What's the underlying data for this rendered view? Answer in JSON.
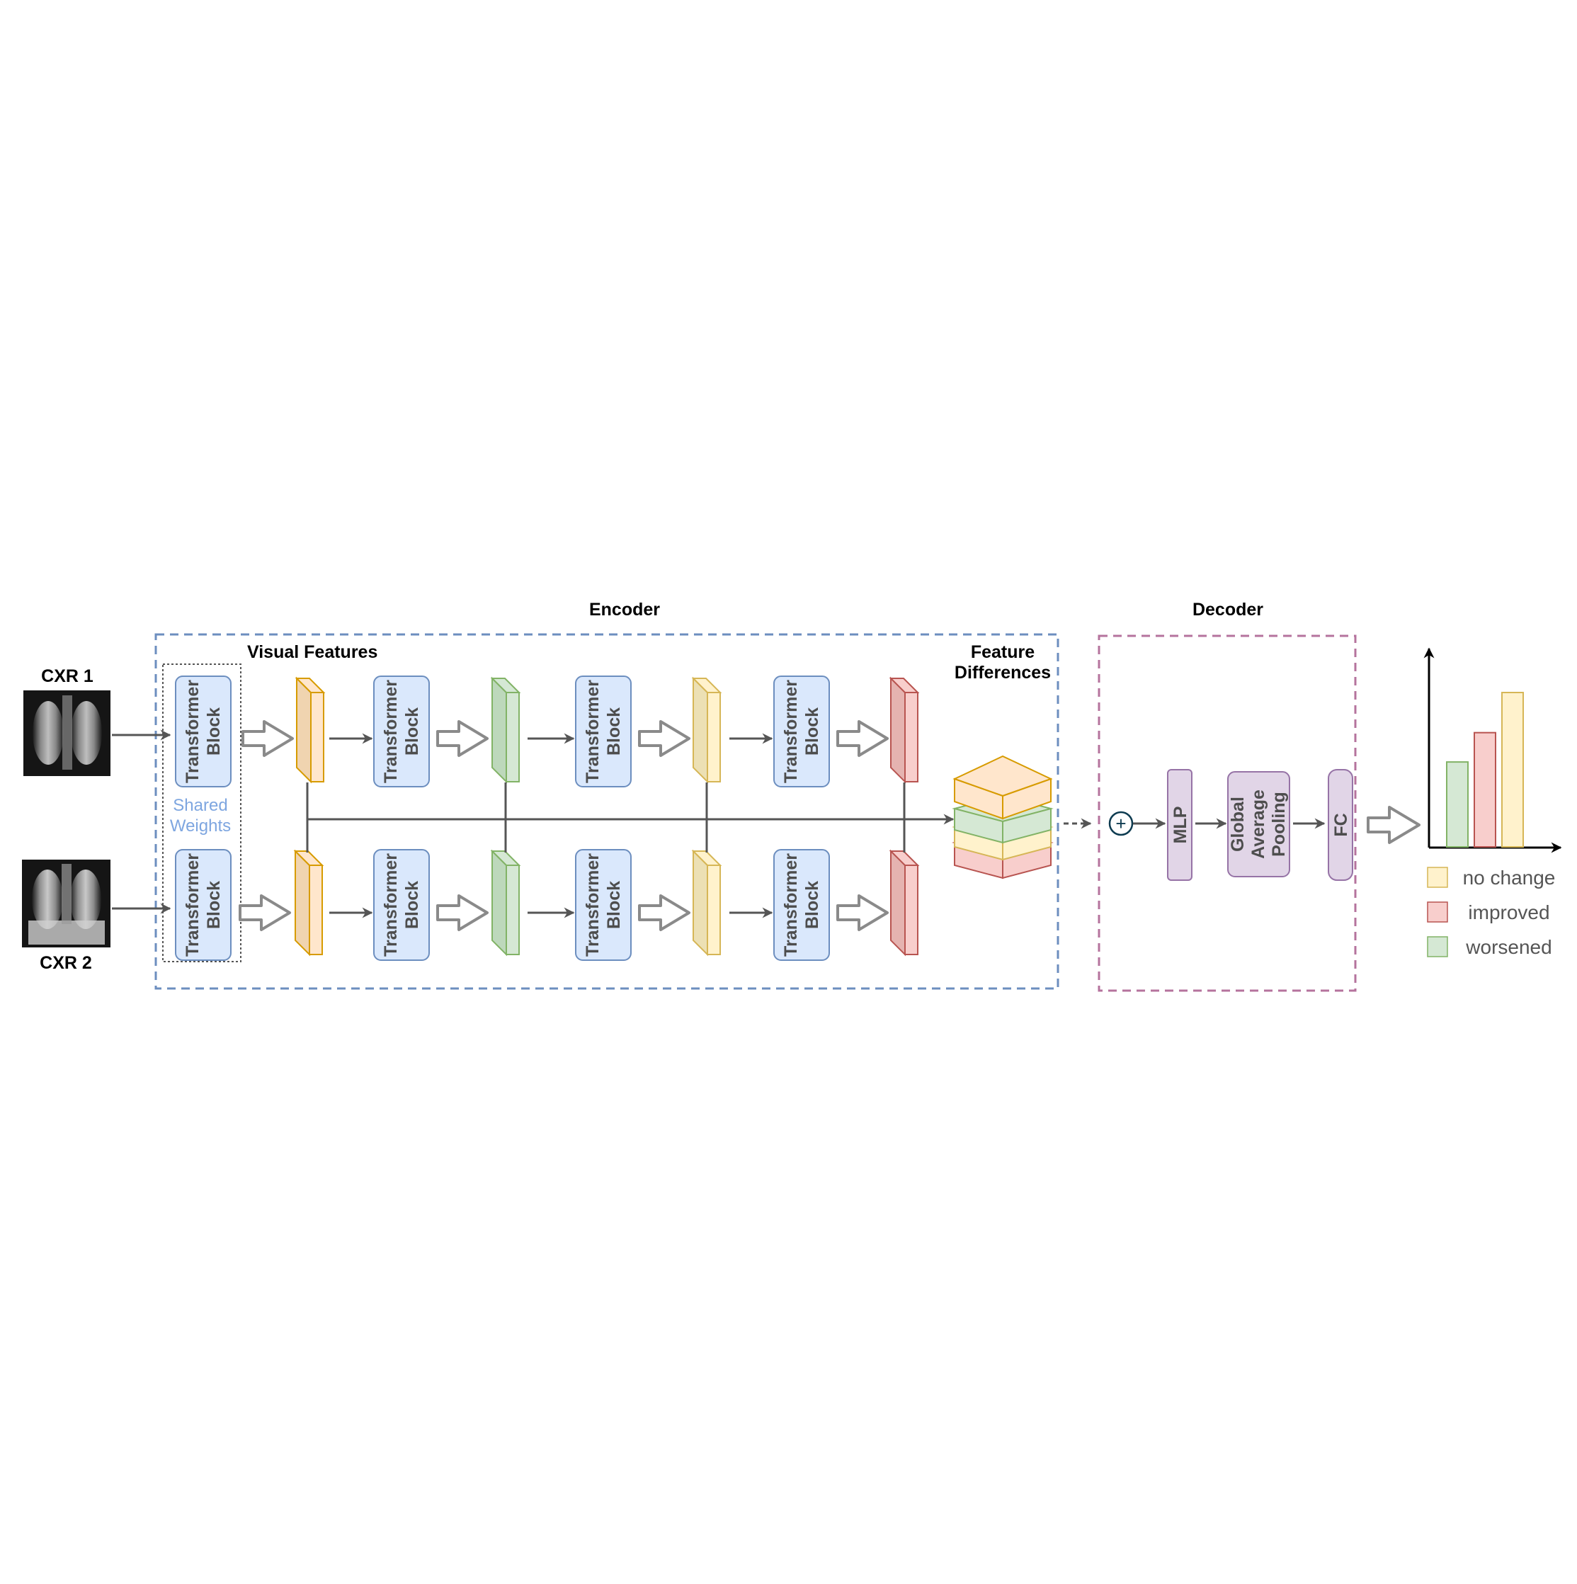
{
  "title": "",
  "labels": {
    "encoder": "Encoder",
    "decoder": "Decoder",
    "visual_features": "Visual Features",
    "feature_differences_1": "Feature",
    "feature_differences_2": "Differences",
    "shared_1": "Shared",
    "shared_2": "Weights",
    "cxr1": "CXR 1",
    "cxr2": "CXR 2"
  },
  "transformer_block": {
    "line1": "Transformer",
    "line2": "Block"
  },
  "decoder_blocks": {
    "mlp": "MLP",
    "gap_1": "Global",
    "gap_2": "Average",
    "gap_3": "Pooling",
    "fc": "FC"
  },
  "plus_symbol": "+",
  "chart_data": {
    "type": "bar",
    "categories": [
      "worsened",
      "improved",
      "no change"
    ],
    "values": [
      0.55,
      0.74,
      1.0
    ],
    "colors": [
      "#d5e8d4",
      "#f8cecc",
      "#fff2cc"
    ],
    "title": "",
    "xlabel": "",
    "ylabel": "",
    "grid": false,
    "legend_position": "right-bottom"
  },
  "legend": [
    {
      "label": "no change",
      "fill": "#fff2cc",
      "stroke": "#d6b656"
    },
    {
      "label": "improved",
      "fill": "#f8cecc",
      "stroke": "#b85450"
    },
    {
      "label": "worsened",
      "fill": "#d5e8d4",
      "stroke": "#82b366"
    }
  ],
  "colors": {
    "encoder_border": "#6c8ebf",
    "decoder_border": "#b5739d",
    "block_fill": "#dae8fc",
    "block_stroke": "#6c8ebf",
    "decoder_block_fill": "#e1d5e7",
    "decoder_block_stroke": "#9673a6",
    "feature_orange": "#ffe6cc",
    "feature_green": "#d5e8d4",
    "feature_yellow": "#fff2cc",
    "feature_red": "#f8cecc",
    "arrow": "#555555"
  }
}
